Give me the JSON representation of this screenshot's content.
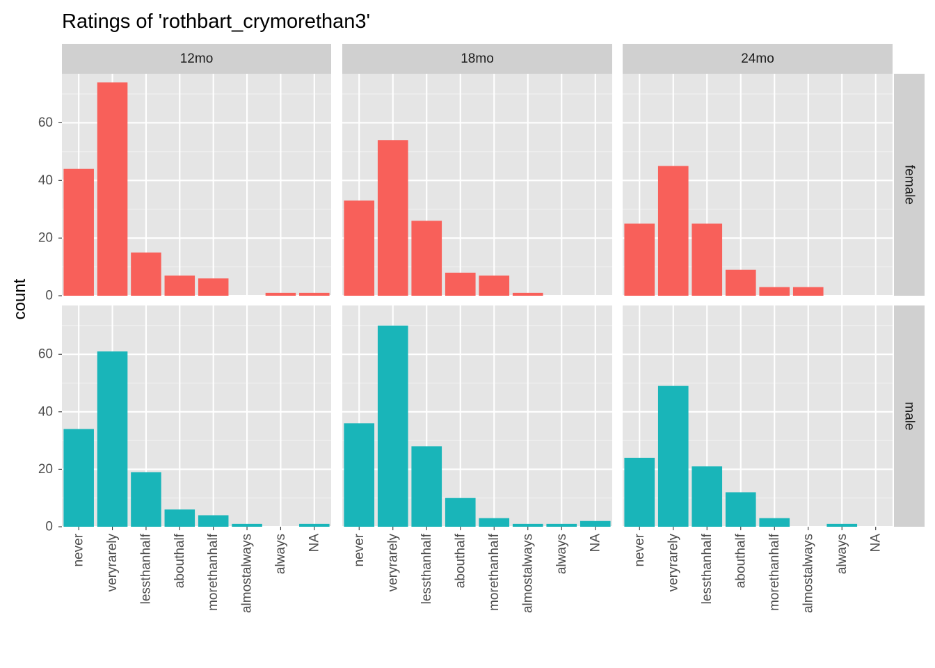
{
  "chart_data": {
    "type": "bar",
    "title": "Ratings of 'rothbart_crymorethan3'",
    "xlabel": "",
    "ylabel": "count",
    "categories": [
      "never",
      "veryrarely",
      "lessthanhalf",
      "abouthalf",
      "morethanhalf",
      "almostalways",
      "always",
      "NA"
    ],
    "col_facets": [
      "12mo",
      "18mo",
      "24mo"
    ],
    "row_facets": [
      "female",
      "male"
    ],
    "y_ticks": [
      0,
      20,
      40,
      60
    ],
    "ylim": [
      0,
      77
    ],
    "colors": {
      "female": "#f8605a",
      "male": "#19b5b9"
    },
    "panels": [
      {
        "col": "12mo",
        "row": "female",
        "values": [
          44,
          74,
          15,
          7,
          6,
          0,
          1,
          1
        ]
      },
      {
        "col": "18mo",
        "row": "female",
        "values": [
          33,
          54,
          26,
          8,
          7,
          1,
          0,
          0
        ]
      },
      {
        "col": "24mo",
        "row": "female",
        "values": [
          25,
          45,
          25,
          9,
          3,
          3,
          0,
          0
        ]
      },
      {
        "col": "12mo",
        "row": "male",
        "values": [
          34,
          61,
          19,
          6,
          4,
          1,
          0,
          1
        ]
      },
      {
        "col": "18mo",
        "row": "male",
        "values": [
          36,
          70,
          28,
          10,
          3,
          1,
          1,
          2
        ]
      },
      {
        "col": "24mo",
        "row": "male",
        "values": [
          24,
          49,
          21,
          12,
          3,
          0,
          1,
          0
        ]
      }
    ]
  }
}
